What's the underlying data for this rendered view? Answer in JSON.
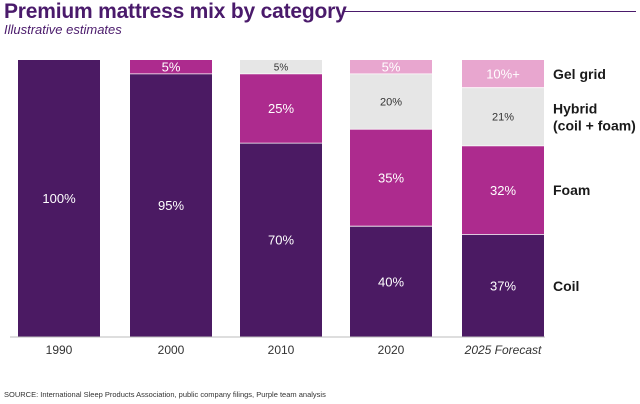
{
  "title": "Premium mattress mix by category",
  "subtitle": "Illustrative estimates",
  "source": "SOURCE: International Sleep Products Association, public company filings, Purple team analysis",
  "colors": {
    "coil": "#4b1a63",
    "foam": "#ad2b8e",
    "hybrid": "#e6e6e6",
    "gel": "#e8a6cf",
    "gel_label_text": "#ffffff",
    "hybrid_label_text": "#333333",
    "dark_label_text": "#ffffff",
    "axis_text": "#333333",
    "legend_text": "#1a1a1a"
  },
  "chart_data": {
    "type": "bar",
    "stacked": true,
    "normalized_to": 100,
    "categories": [
      "1990",
      "2000",
      "2010",
      "2020",
      "2025 Forecast"
    ],
    "italic_categories": [
      "2025 Forecast"
    ],
    "series": [
      {
        "name": "Coil",
        "key": "coil",
        "values": [
          100,
          95,
          70,
          40,
          37
        ],
        "labels": [
          "100%",
          "95%",
          "70%",
          "40%",
          "37%"
        ]
      },
      {
        "name": "Foam",
        "key": "foam",
        "values": [
          0,
          0,
          25,
          35,
          32
        ],
        "labels": [
          "",
          "",
          "25%",
          "35%",
          "32%"
        ]
      },
      {
        "name": "Hybrid\n(coil + foam)",
        "key": "hybrid",
        "values": [
          0,
          0,
          0,
          20,
          21
        ],
        "labels": [
          "",
          "",
          "",
          "20%",
          "21%"
        ]
      },
      {
        "name": "Gel grid",
        "key": "gel",
        "values": [
          0,
          5,
          5,
          5,
          10
        ],
        "labels": [
          "",
          "5%",
          "5%",
          "5%",
          "10%+"
        ]
      }
    ],
    "gel_color_by_category": [
      "gel",
      "foam",
      "hybrid",
      "gel",
      "gel"
    ],
    "gel_label_dark": [
      false,
      false,
      true,
      false,
      false
    ],
    "legend_position": "right",
    "ylim": [
      0,
      100
    ],
    "grid": false
  }
}
